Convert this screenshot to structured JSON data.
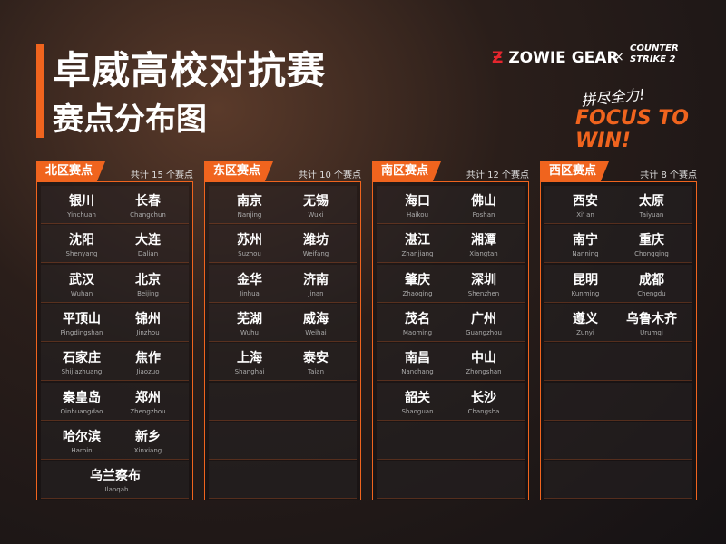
{
  "header": {
    "title": "卓威高校对抗赛",
    "subtitle": "赛点分布图"
  },
  "brand": {
    "zowie": "ZOWIE GEAR",
    "cross": "×",
    "cs_top": "COUNTER",
    "cs_bottom": "STRIKE 2"
  },
  "slogan": {
    "cn": "拼尽全力!",
    "en": "FOCUS TO WIN!"
  },
  "regions": [
    {
      "name": "北区赛点",
      "count": "共计 15 个赛点",
      "cities": [
        {
          "cn": "银川",
          "en": "Yinchuan"
        },
        {
          "cn": "长春",
          "en": "Changchun"
        },
        {
          "cn": "沈阳",
          "en": "Shenyang"
        },
        {
          "cn": "大连",
          "en": "Dalian"
        },
        {
          "cn": "武汉",
          "en": "Wuhan"
        },
        {
          "cn": "北京",
          "en": "Beijing"
        },
        {
          "cn": "平顶山",
          "en": "Pingdingshan"
        },
        {
          "cn": "锦州",
          "en": "Jinzhou"
        },
        {
          "cn": "石家庄",
          "en": "Shijiazhuang"
        },
        {
          "cn": "焦作",
          "en": "Jiaozuo"
        },
        {
          "cn": "秦皇岛",
          "en": "Qinhuangdao"
        },
        {
          "cn": "郑州",
          "en": "Zhengzhou"
        },
        {
          "cn": "哈尔滨",
          "en": "Harbin"
        },
        {
          "cn": "新乡",
          "en": "Xinxiang"
        },
        {
          "cn": "乌兰察布",
          "en": "Ulanqab"
        }
      ]
    },
    {
      "name": "东区赛点",
      "count": "共计 10 个赛点",
      "cities": [
        {
          "cn": "南京",
          "en": "Nanjing"
        },
        {
          "cn": "无锡",
          "en": "Wuxi"
        },
        {
          "cn": "苏州",
          "en": "Suzhou"
        },
        {
          "cn": "潍坊",
          "en": "Weifang"
        },
        {
          "cn": "金华",
          "en": "Jinhua"
        },
        {
          "cn": "济南",
          "en": "Jinan"
        },
        {
          "cn": "芜湖",
          "en": "Wuhu"
        },
        {
          "cn": "威海",
          "en": "Weihai"
        },
        {
          "cn": "上海",
          "en": "Shanghai"
        },
        {
          "cn": "泰安",
          "en": "Taian"
        }
      ]
    },
    {
      "name": "南区赛点",
      "count": "共计 12 个赛点",
      "cities": [
        {
          "cn": "海口",
          "en": "Haikou"
        },
        {
          "cn": "佛山",
          "en": "Foshan"
        },
        {
          "cn": "湛江",
          "en": "Zhanjiang"
        },
        {
          "cn": "湘潭",
          "en": "Xiangtan"
        },
        {
          "cn": "肇庆",
          "en": "Zhaoqing"
        },
        {
          "cn": "深圳",
          "en": "Shenzhen"
        },
        {
          "cn": "茂名",
          "en": "Maoming"
        },
        {
          "cn": "广州",
          "en": "Guangzhou"
        },
        {
          "cn": "南昌",
          "en": "Nanchang"
        },
        {
          "cn": "中山",
          "en": "Zhongshan"
        },
        {
          "cn": "韶关",
          "en": "Shaoguan"
        },
        {
          "cn": "长沙",
          "en": "Changsha"
        }
      ]
    },
    {
      "name": "西区赛点",
      "count": "共计 8 个赛点",
      "cities": [
        {
          "cn": "西安",
          "en": "Xi' an"
        },
        {
          "cn": "太原",
          "en": "Taiyuan"
        },
        {
          "cn": "南宁",
          "en": "Nanning"
        },
        {
          "cn": "重庆",
          "en": "Chongqing"
        },
        {
          "cn": "昆明",
          "en": "Kunming"
        },
        {
          "cn": "成都",
          "en": "Chengdu"
        },
        {
          "cn": "遵义",
          "en": "Zunyi"
        },
        {
          "cn": "乌鲁木齐",
          "en": "Urumqi"
        }
      ]
    }
  ]
}
